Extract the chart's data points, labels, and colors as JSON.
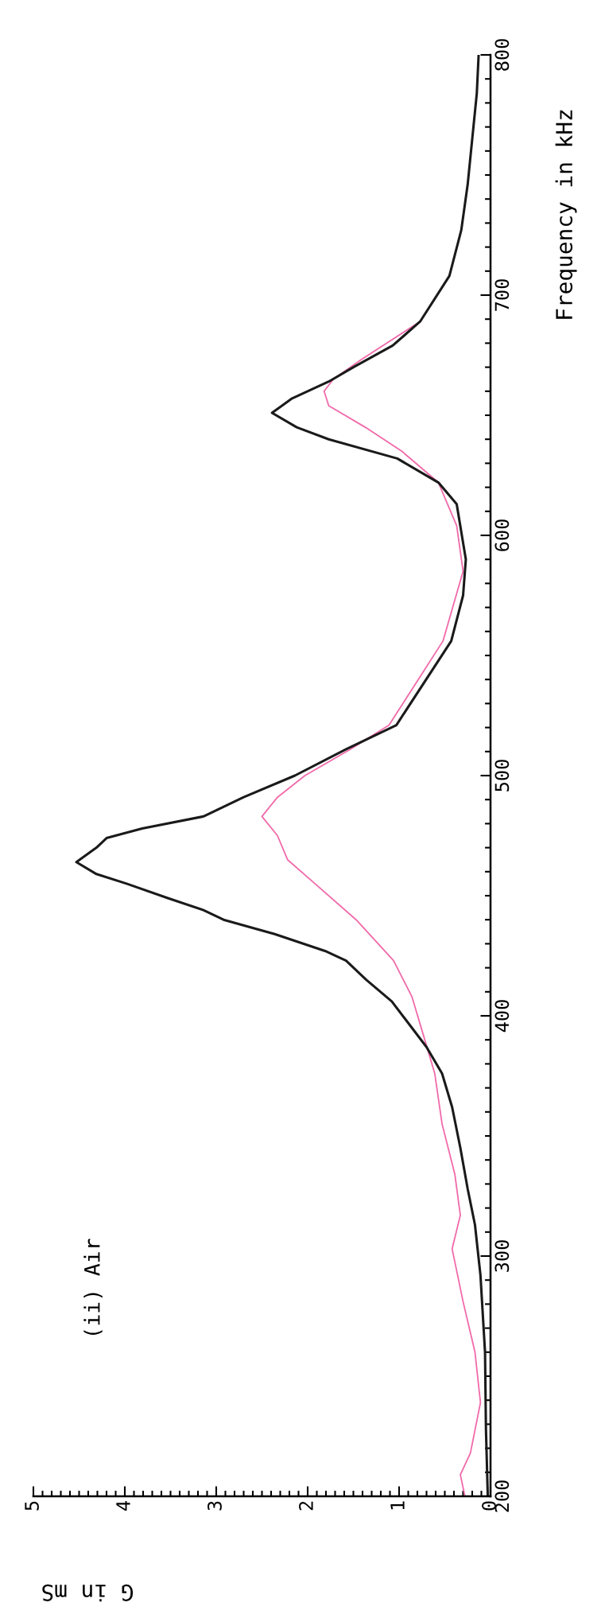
{
  "chart_data": {
    "type": "line",
    "xlabel": "G in mS",
    "ylabel": "Frequency in kHz",
    "annotations": [
      "(ii) Air"
    ],
    "xlim": [
      5,
      0
    ],
    "ylim": [
      200,
      800
    ],
    "xticks": [
      5,
      4,
      3,
      2,
      1,
      0
    ],
    "yticks": [
      200,
      300,
      400,
      500,
      600,
      700,
      800
    ],
    "grid": false,
    "legend": false,
    "marker": "none",
    "line_style": "solid",
    "series": [
      {
        "color": "#f06aaa",
        "values": [
          200,
          209,
          218,
          239,
          260,
          281,
          303,
          317,
          334,
          355,
          376,
          394,
          408,
          423,
          440,
          455,
          465,
          475,
          483,
          491,
          500,
          511,
          521,
          556,
          585,
          604,
          622,
          635,
          645,
          654,
          660,
          665,
          673,
          689,
          708
        ],
        "x": [
          0.28,
          0.33,
          0.22,
          0.11,
          0.17,
          0.3,
          0.42,
          0.33,
          0.39,
          0.53,
          0.61,
          0.75,
          0.86,
          1.06,
          1.47,
          1.92,
          2.22,
          2.33,
          2.5,
          2.33,
          2.03,
          1.53,
          1.11,
          0.52,
          0.3,
          0.37,
          0.57,
          0.97,
          1.37,
          1.77,
          1.82,
          1.72,
          1.42,
          0.77,
          0.45
        ]
      },
      {
        "color": "#1a1a1a",
        "values": [
          200,
          228,
          260,
          292,
          313,
          328,
          345,
          362,
          376,
          387,
          398,
          406,
          415,
          423,
          427,
          434,
          440,
          444,
          449,
          455,
          459,
          464,
          470,
          474,
          478,
          483,
          491,
          500,
          511,
          521,
          556,
          575,
          590,
          613,
          622,
          632,
          640,
          645,
          651,
          657,
          664,
          670,
          679,
          689,
          708,
          727,
          746,
          765,
          784,
          800
        ],
        "x": [
          0.03,
          0.05,
          0.06,
          0.11,
          0.17,
          0.25,
          0.33,
          0.42,
          0.53,
          0.7,
          0.92,
          1.08,
          1.36,
          1.58,
          1.81,
          2.36,
          2.92,
          3.14,
          3.53,
          3.98,
          4.31,
          4.53,
          4.31,
          4.2,
          3.81,
          3.14,
          2.7,
          2.14,
          1.58,
          1.03,
          0.43,
          0.3,
          0.27,
          0.37,
          0.57,
          1.02,
          1.77,
          2.12,
          2.39,
          2.17,
          1.77,
          1.5,
          1.07,
          0.77,
          0.45,
          0.32,
          0.25,
          0.2,
          0.15,
          0.13
        ]
      }
    ]
  }
}
